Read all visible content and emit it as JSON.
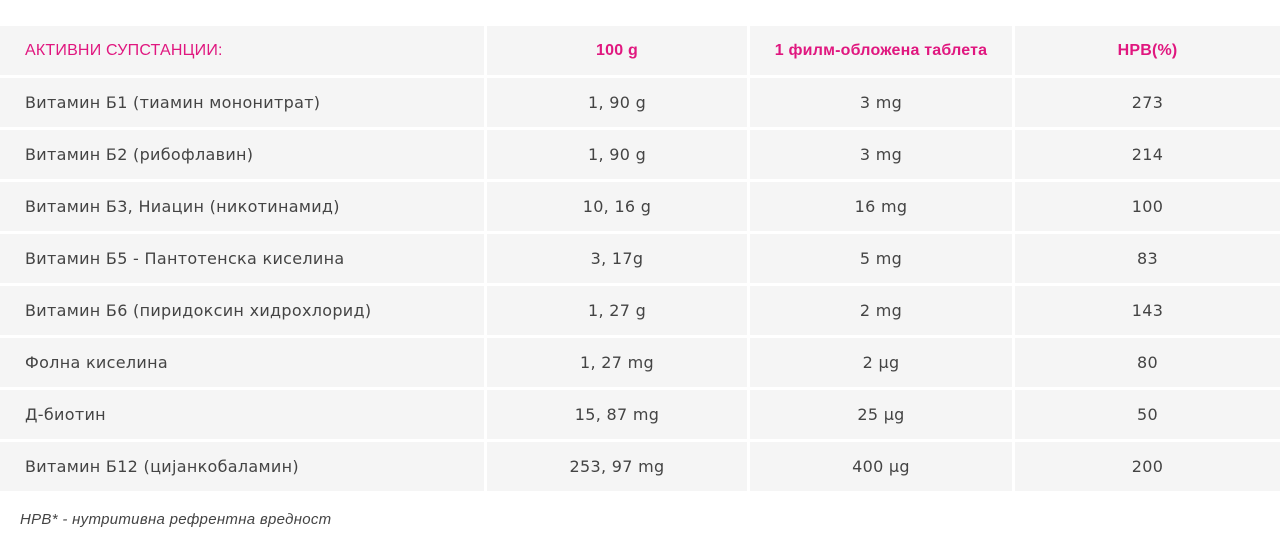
{
  "table": {
    "headers": [
      "АКТИВНИ СУПСТАНЦИИ:",
      "100 g",
      "1 филм-обложена таблета",
      "НРВ(%)"
    ],
    "rows": [
      [
        "Витамин Б1 (тиамин мононитрат)",
        "1, 90 g",
        "3 mg",
        "273"
      ],
      [
        "Витамин Б2 (рибофлавин)",
        "1, 90 g",
        "3 mg",
        "214"
      ],
      [
        "Витамин Б3, Ниацин (никотинамид)",
        "10, 16 g",
        "16 mg",
        "100"
      ],
      [
        "Витамин Б5 - Пантотенска киселина",
        "3, 17g",
        "5 mg",
        "83"
      ],
      [
        "Витамин Б6 (пиридоксин хидрохлорид)",
        "1, 27 g",
        "2 mg",
        "143"
      ],
      [
        "Фолна киселина",
        "1, 27 mg",
        "2 μg",
        "80"
      ],
      [
        "Д-биотин",
        "15, 87 mg",
        "25 μg",
        "50"
      ],
      [
        "Витамин Б12 (цијанкобаламин)",
        "253, 97 mg",
        "400 μg",
        "200"
      ]
    ]
  },
  "footnote": "НРВ* - нутритивна рефрентна вредност",
  "colors": {
    "accent": "#e0177f",
    "cell_background": "#f5f5f5",
    "text": "#444444"
  }
}
